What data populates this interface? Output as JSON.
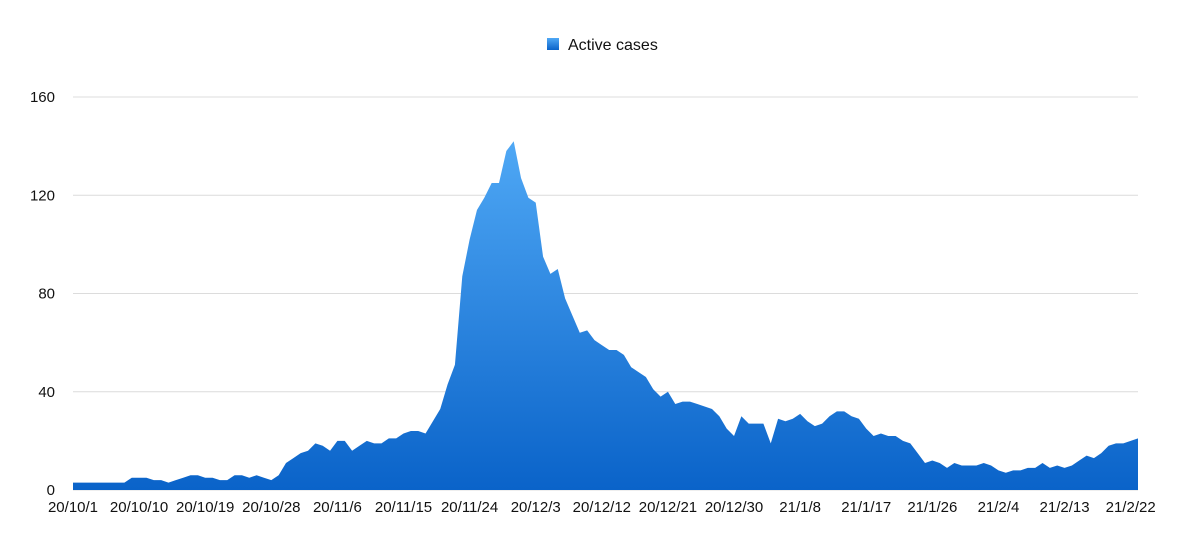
{
  "chart_data": {
    "type": "area",
    "series": [
      {
        "name": "Active cases",
        "values": [
          3,
          3,
          3,
          3,
          3,
          3,
          3,
          3,
          5,
          5,
          5,
          4,
          4,
          3,
          4,
          5,
          6,
          6,
          5,
          5,
          4,
          4,
          6,
          6,
          5,
          6,
          5,
          4,
          6,
          11,
          13,
          15,
          16,
          19,
          18,
          16,
          20,
          20,
          16,
          18,
          20,
          19,
          19,
          21,
          21,
          23,
          24,
          24,
          23,
          28,
          33,
          43,
          51,
          87,
          102,
          114,
          119,
          125,
          125,
          138,
          142,
          127,
          119,
          117,
          95,
          88,
          90,
          78,
          71,
          64,
          65,
          61,
          59,
          57,
          57,
          55,
          50,
          48,
          46,
          41,
          38,
          40,
          35,
          36,
          36,
          35,
          34,
          33,
          30,
          25,
          22,
          30,
          27,
          27,
          27,
          19,
          29,
          28,
          29,
          31,
          28,
          26,
          27,
          30,
          32,
          32,
          30,
          29,
          25,
          22,
          23,
          22,
          22,
          20,
          19,
          15,
          11,
          12,
          11,
          9,
          11,
          10,
          10,
          10,
          11,
          10,
          8,
          7,
          8,
          8,
          9,
          9,
          11,
          9,
          10,
          9,
          10,
          12,
          14,
          13,
          15,
          18,
          19,
          19,
          20,
          21
        ]
      }
    ],
    "x_labels": [
      "20/10/1",
      "20/10/10",
      "20/10/19",
      "20/10/28",
      "20/11/6",
      "20/11/15",
      "20/11/24",
      "20/12/3",
      "20/12/12",
      "20/12/21",
      "20/12/30",
      "21/1/8",
      "21/1/17",
      "21/1/26",
      "21/2/4",
      "21/2/13",
      "21/2/22"
    ],
    "x_label_step": 9,
    "yticks": [
      0,
      40,
      80,
      120,
      160
    ],
    "ylim": [
      0,
      160
    ],
    "grid": true,
    "legend": {
      "position": "top-center",
      "label": "Active cases"
    },
    "colors": {
      "fill_top": "#4fa8f5",
      "fill_bottom": "#0a63c9",
      "legend_swatch": "#1f7fe0",
      "grid": "#dcdcdc"
    },
    "title": "",
    "xlabel": "",
    "ylabel": ""
  }
}
